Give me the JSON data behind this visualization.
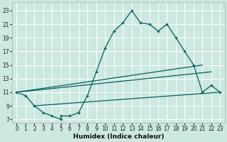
{
  "title": "",
  "xlabel": "Humidex (Indice chaleur)",
  "ylabel": "",
  "bg_color": "#cce8e0",
  "grid_color": "#b0d8d0",
  "line_color": "#006060",
  "x_ticks": [
    0,
    1,
    2,
    3,
    4,
    5,
    6,
    7,
    8,
    9,
    10,
    11,
    12,
    13,
    14,
    15,
    16,
    17,
    18,
    19,
    20,
    21,
    22,
    23
  ],
  "y_ticks": [
    7,
    9,
    11,
    13,
    15,
    17,
    19,
    21,
    23
  ],
  "xlim": [
    -0.5,
    23.5
  ],
  "ylim": [
    6.5,
    24.2
  ],
  "curve1_x": [
    0,
    1,
    2,
    3,
    4,
    5,
    5,
    6,
    7,
    8,
    9,
    10,
    11,
    12,
    13,
    14,
    15,
    16,
    17,
    18,
    19,
    20,
    21,
    22,
    23
  ],
  "curve1_y": [
    11,
    10.5,
    9,
    8,
    7.5,
    7,
    7.5,
    7.5,
    8,
    10.5,
    14,
    17.5,
    20,
    21.2,
    23,
    21.2,
    21,
    20,
    21,
    19,
    17,
    15,
    11,
    12,
    11
  ],
  "line1_x": [
    2,
    23
  ],
  "line1_y": [
    9,
    11
  ],
  "line2_x": [
    0,
    21
  ],
  "line2_y": [
    11,
    15
  ],
  "line3_x": [
    0,
    22
  ],
  "line3_y": [
    11,
    14
  ]
}
